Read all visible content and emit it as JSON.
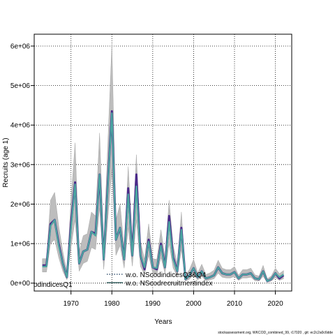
{
  "chart_data": {
    "type": "line",
    "xlabel": "Years",
    "ylabel": "Recruits (age 1)",
    "xlim": [
      1961,
      2024
    ],
    "ylim": [
      -200000,
      6300000
    ],
    "x_ticks": [
      1970,
      1980,
      1990,
      2000,
      2010,
      2020
    ],
    "x_tick_labels": [
      "1970",
      "1980",
      "1990",
      "2000",
      "2010",
      "2020"
    ],
    "y_ticks": [
      0,
      1000000,
      2000000,
      3000000,
      4000000,
      5000000,
      6000000
    ],
    "y_tick_labels": [
      "0e+00",
      "1e+06",
      "2e+06",
      "3e+06",
      "4e+06",
      "5e+06",
      "6e+06"
    ],
    "grid": true,
    "legend_left_text": "odindicesQ1",
    "legend_entries": [
      {
        "label": "w.o. NScodindicesQ3&Q4",
        "style": "dotted",
        "color": "#1a3a5c"
      },
      {
        "label": "w.o. NScodrecruitmentindex",
        "style": "solid",
        "color": "#1a4a4a"
      }
    ],
    "footer": "stockassessment.org, WKCOD_combined_99, r17020 , git: ec2c2a0c6dde",
    "x": [
      1963,
      1964,
      1965,
      1966,
      1967,
      1968,
      1969,
      1970,
      1971,
      1972,
      1973,
      1974,
      1975,
      1976,
      1977,
      1978,
      1979,
      1980,
      1981,
      1982,
      1983,
      1984,
      1985,
      1986,
      1987,
      1988,
      1989,
      1990,
      1991,
      1992,
      1993,
      1994,
      1995,
      1996,
      1997,
      1998,
      1999,
      2000,
      2001,
      2002,
      2003,
      2004,
      2005,
      2006,
      2007,
      2008,
      2009,
      2010,
      2011,
      2012,
      2013,
      2014,
      2015,
      2016,
      2017,
      2018,
      2019,
      2020,
      2021,
      2022
    ],
    "series": [
      {
        "color": "#4b2a8a",
        "values": [
          450000,
          450000,
          1500000,
          1600000,
          1000000,
          500000,
          150000,
          1500000,
          2550000,
          500000,
          800000,
          850000,
          1300000,
          1250000,
          2750000,
          600000,
          2500000,
          4350000,
          1100000,
          1400000,
          600000,
          2400000,
          700000,
          2750000,
          700000,
          350000,
          1100000,
          400000,
          350000,
          1000000,
          400000,
          1700000,
          650000,
          300000,
          1400000,
          100000,
          200000,
          380000,
          150000,
          300000,
          120000,
          150000,
          200000,
          400000,
          250000,
          220000,
          220000,
          280000,
          120000,
          220000,
          220000,
          250000,
          120000,
          100000,
          300000,
          50000,
          100000,
          250000,
          120000,
          200000
        ]
      },
      {
        "color": "#4aa5a0",
        "values": [
          420000,
          420000,
          1450000,
          1600000,
          950000,
          500000,
          150000,
          1400000,
          2500000,
          500000,
          800000,
          850000,
          1300000,
          1200000,
          2750000,
          600000,
          2450000,
          4300000,
          1100000,
          1400000,
          600000,
          2250000,
          700000,
          2450000,
          700000,
          400000,
          1050000,
          400000,
          380000,
          950000,
          400000,
          1550000,
          600000,
          300000,
          1350000,
          100000,
          200000,
          380000,
          150000,
          300000,
          120000,
          150000,
          200000,
          400000,
          250000,
          220000,
          220000,
          280000,
          120000,
          220000,
          220000,
          250000,
          120000,
          100000,
          300000,
          50000,
          100000,
          250000,
          150000,
          220000
        ]
      }
    ],
    "band_low": [
      280000,
      280000,
      1000000,
      1100000,
      650000,
      300000,
      80000,
      900000,
      1600000,
      300000,
      500000,
      550000,
      900000,
      850000,
      1900000,
      350000,
      1600000,
      2900000,
      700000,
      950000,
      380000,
      1400000,
      430000,
      1600000,
      420000,
      220000,
      700000,
      250000,
      220000,
      650000,
      250000,
      1000000,
      380000,
      180000,
      850000,
      50000,
      100000,
      220000,
      80000,
      170000,
      60000,
      80000,
      110000,
      250000,
      150000,
      130000,
      130000,
      170000,
      70000,
      130000,
      130000,
      150000,
      60000,
      50000,
      170000,
      20000,
      50000,
      140000,
      70000,
      110000
    ],
    "band_high": [
      620000,
      620000,
      2100000,
      2300000,
      1450000,
      800000,
      280000,
      2100000,
      3550000,
      800000,
      1200000,
      1250000,
      1800000,
      1700000,
      3800000,
      950000,
      3500000,
      6050000,
      1600000,
      2000000,
      900000,
      2950000,
      1100000,
      3250000,
      1050000,
      600000,
      1500000,
      620000,
      600000,
      1350000,
      650000,
      2100000,
      950000,
      500000,
      1800000,
      200000,
      350000,
      600000,
      260000,
      480000,
      220000,
      260000,
      330000,
      580000,
      380000,
      340000,
      340000,
      420000,
      200000,
      340000,
      340000,
      380000,
      210000,
      180000,
      450000,
      110000,
      180000,
      380000,
      240000,
      320000
    ]
  }
}
